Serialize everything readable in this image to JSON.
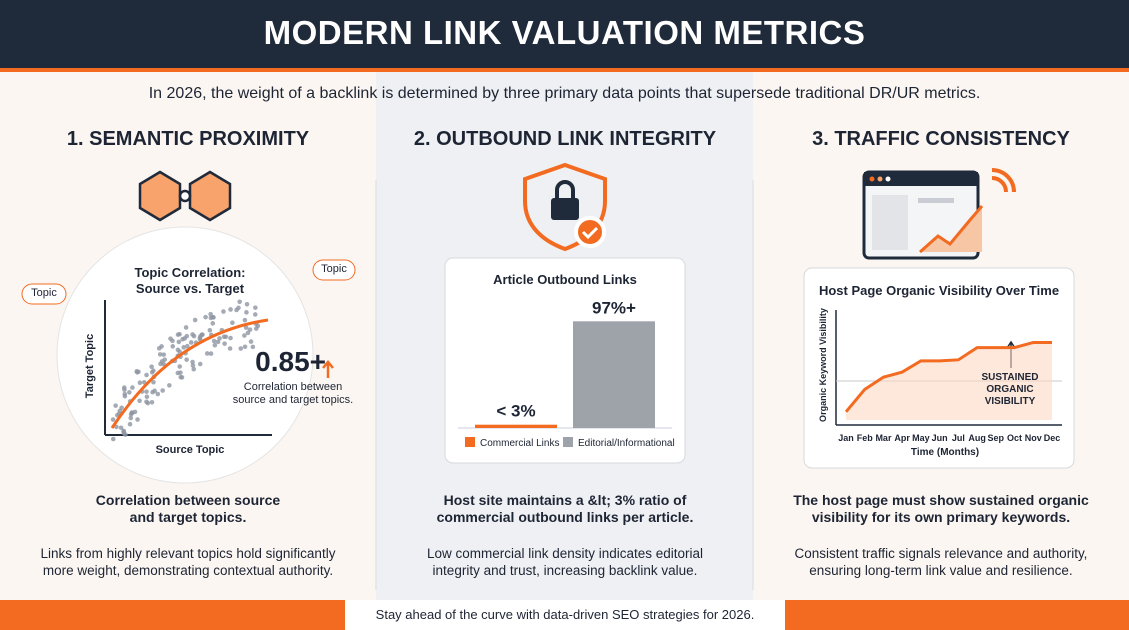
{
  "header": {
    "title": "MODERN LINK VALUATION METRICS",
    "intro": "In 2026, the weight of a backlink is determined by three primary data points that supersede traditional DR/UR metrics."
  },
  "columns": [
    {
      "heading": "1. SEMANTIC PROXIMITY",
      "figure": {
        "type": "scatter",
        "title": "Topic Correlation:\nSource vs. Target",
        "x_label": "Source Topic",
        "y_label": "Target Topic",
        "stat": "0.85+",
        "stat_note": "Correlation between\nsource and target topics.",
        "tags": [
          "Topic",
          "Topic"
        ]
      },
      "summary": "Correlation between source\nand target topics.",
      "description": "Links from highly relevant topics hold significantly\nmore weight, demonstrating contextual authority."
    },
    {
      "heading": "2. OUTBOUND LINK INTEGRITY",
      "figure": {
        "type": "bar",
        "title": "Article Outbound Links",
        "categories": [
          "Commercial Links",
          "Editorial/Informational"
        ],
        "values": [
          3,
          97
        ],
        "value_labels": [
          "< 3%",
          "97%+"
        ],
        "colors": [
          "#f26b21",
          "#9ea3aa"
        ],
        "ylim": [
          0,
          100
        ]
      },
      "summary": "Host site maintains a &lt; 3% ratio of\ncommercial outbound links per article.",
      "description": "Low commercial link density indicates editorial\nintegrity and trust, increasing backlink value."
    },
    {
      "heading": "3. TRAFFIC CONSISTENCY",
      "figure": {
        "type": "line",
        "title": "Host Page Organic Visibility Over Time",
        "x_label": "Time (Months)",
        "y_label": "Organic Keyword Visibility",
        "categories": [
          "Jan",
          "Feb",
          "Mar",
          "Apr",
          "May",
          "Jun",
          "Jul",
          "Aug",
          "Sep",
          "Oct",
          "Nov",
          "Dec"
        ],
        "values": [
          8,
          30,
          42,
          47,
          58,
          58,
          59,
          71,
          71,
          71,
          76,
          76
        ],
        "ylim": [
          0,
          100
        ],
        "color": "#f26b21",
        "annotation": "SUSTAINED\nORGANIC\nVISIBILITY"
      },
      "summary": "The host page must show sustained organic\nvisibility for its own primary keywords.",
      "description": "Consistent traffic signals relevance and authority,\nensuring long-term link value and resilience."
    }
  ],
  "footer": "Stay ahead of the curve with data-driven SEO strategies for 2026."
}
